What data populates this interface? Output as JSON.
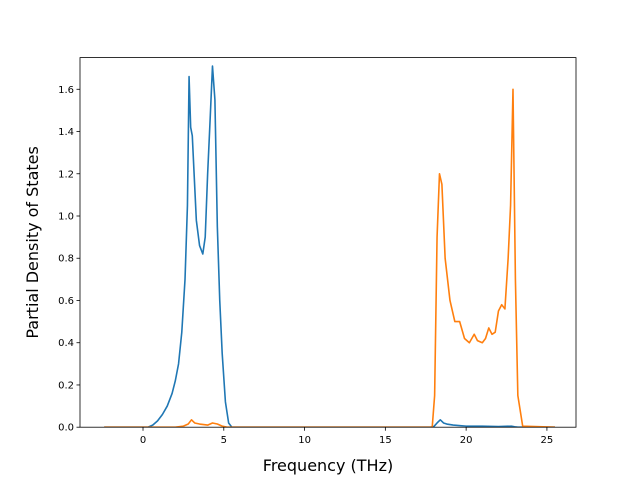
{
  "chart_data": {
    "type": "line",
    "title": "",
    "xlabel": "Frequency (THz)",
    "ylabel": "Partial Density of States",
    "xlim": [
      -3.9,
      26.8
    ],
    "ylim": [
      0,
      1.75
    ],
    "xticks": [
      0,
      5,
      10,
      15,
      20,
      25
    ],
    "yticks": [
      0.0,
      0.2,
      0.4,
      0.6,
      0.8,
      1.0,
      1.2,
      1.4,
      1.6
    ],
    "ytick_labels": [
      "0.0",
      "0.2",
      "0.4",
      "0.6",
      "0.8",
      "1.0",
      "1.2",
      "1.4",
      "1.6"
    ],
    "grid": false,
    "legend": "none",
    "series": [
      {
        "color": "#1f77b4",
        "x": [
          -2.4,
          0.3,
          0.6,
          0.9,
          1.2,
          1.5,
          1.8,
          2.0,
          2.2,
          2.4,
          2.6,
          2.75,
          2.85,
          2.95,
          3.05,
          3.15,
          3.3,
          3.5,
          3.7,
          3.85,
          4.0,
          4.15,
          4.3,
          4.45,
          4.6,
          4.75,
          4.9,
          5.1,
          5.3,
          5.5,
          8,
          12,
          16,
          17.8,
          18.0,
          18.2,
          18.4,
          18.6,
          18.8,
          19.2,
          20,
          21,
          22,
          22.8,
          23.0,
          23.2,
          25.5
        ],
        "y": [
          0,
          0,
          0.01,
          0.03,
          0.06,
          0.1,
          0.16,
          0.22,
          0.3,
          0.45,
          0.7,
          1.05,
          1.66,
          1.42,
          1.38,
          1.22,
          0.98,
          0.86,
          0.82,
          0.9,
          1.2,
          1.45,
          1.71,
          1.55,
          0.95,
          0.6,
          0.35,
          0.12,
          0.02,
          0,
          0,
          0,
          0,
          0,
          0.003,
          0.02,
          0.035,
          0.02,
          0.015,
          0.01,
          0.005,
          0.005,
          0.003,
          0.005,
          0.002,
          0,
          0
        ]
      },
      {
        "color": "#ff7f0e",
        "x": [
          -2.4,
          2.0,
          2.5,
          2.8,
          3.0,
          3.2,
          3.5,
          4.0,
          4.3,
          4.6,
          4.9,
          5.2,
          5.5,
          10,
          15,
          17.9,
          18.05,
          18.2,
          18.35,
          18.5,
          18.7,
          19.0,
          19.3,
          19.6,
          19.9,
          20.2,
          20.5,
          20.7,
          21.0,
          21.2,
          21.4,
          21.6,
          21.8,
          22.0,
          22.2,
          22.4,
          22.6,
          22.75,
          22.9,
          23.05,
          23.2,
          23.5,
          25.5
        ],
        "y": [
          0,
          0,
          0.005,
          0.015,
          0.035,
          0.02,
          0.015,
          0.01,
          0.02,
          0.015,
          0.005,
          0,
          0,
          0,
          0,
          0,
          0.15,
          0.9,
          1.2,
          1.15,
          0.8,
          0.6,
          0.5,
          0.5,
          0.42,
          0.4,
          0.44,
          0.41,
          0.4,
          0.42,
          0.47,
          0.44,
          0.45,
          0.55,
          0.58,
          0.56,
          0.8,
          1.05,
          1.6,
          0.7,
          0.15,
          0.005,
          0
        ]
      }
    ]
  }
}
